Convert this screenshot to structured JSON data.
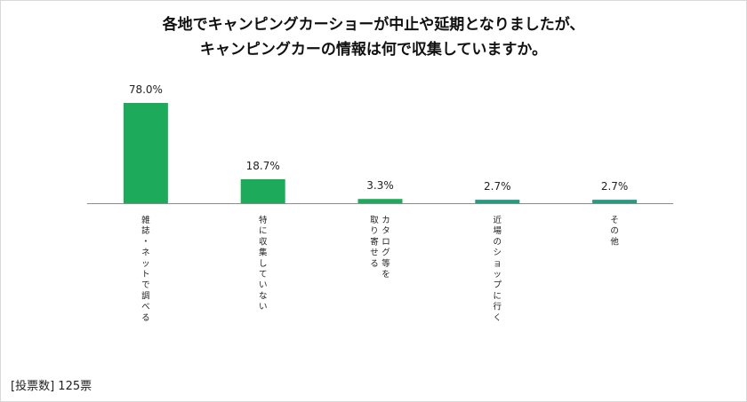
{
  "title": {
    "line1": "各地でキャンピングカーショーが中止や延期となりましたが、",
    "line2": "キャンピングカーの情報は何で収集していますか。"
  },
  "footer": {
    "label": "[投票数]",
    "count": "125票"
  },
  "chart_data": {
    "type": "bar",
    "title": "各地でキャンピングカーショーが中止や延期となりましたが、キャンピングカーの情報は何で収集していますか。",
    "categories": [
      "雑誌・ネットで調べる",
      "特に収集していない",
      "カタログ等を取り寄せる",
      "近場のショップに行く",
      "その他"
    ],
    "category_lines": [
      [
        "雑誌・ネットで調べる"
      ],
      [
        "特に収集していない"
      ],
      [
        "カタログ等を",
        "取り寄せる"
      ],
      [
        "近場のショップに行く"
      ],
      [
        "その他"
      ]
    ],
    "values": [
      78.0,
      18.7,
      3.3,
      2.7,
      2.7
    ],
    "value_labels": [
      "78.0%",
      "18.7%",
      "3.3%",
      "2.7%",
      "2.7%"
    ],
    "unit": "%",
    "ylim": [
      0,
      100
    ],
    "grid": false,
    "legend": "none",
    "bar_colors": [
      "#1dab5b",
      "#1dab5b",
      "#1dab5b",
      "#1f9e82",
      "#1f9e82"
    ]
  }
}
